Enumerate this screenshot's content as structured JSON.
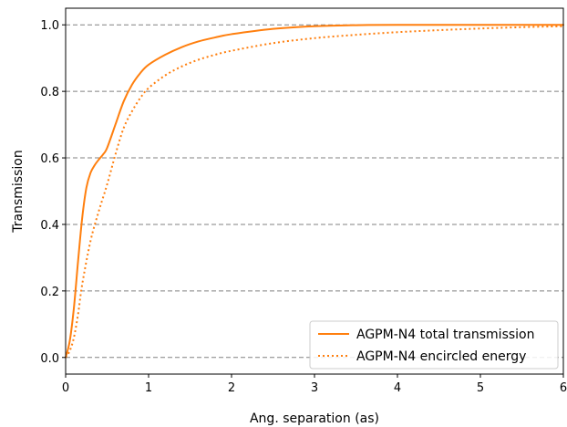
{
  "chart_data": {
    "type": "line",
    "xlabel": "Ang. separation (as)",
    "ylabel": "Transmission",
    "xlim": [
      0,
      6
    ],
    "ylim": [
      -0.05,
      1.05
    ],
    "xticks": [
      0,
      1,
      2,
      3,
      4,
      5,
      6
    ],
    "xtick_labels": [
      "0",
      "1",
      "2",
      "3",
      "4",
      "5",
      "6"
    ],
    "yticks": [
      0.0,
      0.2,
      0.4,
      0.6,
      0.8,
      1.0
    ],
    "ytick_labels": [
      "0.0",
      "0.2",
      "0.4",
      "0.6",
      "0.8",
      "1.0"
    ],
    "grid": "horizontal dashed",
    "legend_position": "lower-right",
    "series": [
      {
        "name": "AGPM-N4 total transmission",
        "color": "#ff7f0e",
        "line_style": "solid",
        "x": [
          0,
          0.05,
          0.1,
          0.15,
          0.2,
          0.25,
          0.3,
          0.35,
          0.4,
          0.45,
          0.5,
          0.6,
          0.7,
          0.8,
          0.9,
          1.0,
          1.2,
          1.4,
          1.6,
          1.8,
          2.0,
          2.5,
          3.0,
          3.5,
          4.0,
          5.0,
          6.0
        ],
        "y": [
          0.0,
          0.05,
          0.15,
          0.29,
          0.42,
          0.51,
          0.555,
          0.578,
          0.595,
          0.61,
          0.63,
          0.7,
          0.77,
          0.82,
          0.855,
          0.88,
          0.91,
          0.933,
          0.95,
          0.962,
          0.972,
          0.988,
          0.996,
          0.999,
          1.0,
          1.0,
          1.0
        ]
      },
      {
        "name": "AGPM-N4 encircled energy",
        "color": "#ff7f0e",
        "line_style": "dotted",
        "x": [
          0,
          0.05,
          0.1,
          0.15,
          0.2,
          0.3,
          0.4,
          0.5,
          0.6,
          0.7,
          0.8,
          0.9,
          1.0,
          1.2,
          1.4,
          1.6,
          1.8,
          2.0,
          2.5,
          3.0,
          3.5,
          4.0,
          4.5,
          5.0,
          5.5,
          6.0
        ],
        "y": [
          0.0,
          0.02,
          0.06,
          0.13,
          0.22,
          0.35,
          0.44,
          0.52,
          0.61,
          0.69,
          0.74,
          0.78,
          0.81,
          0.848,
          0.875,
          0.895,
          0.91,
          0.922,
          0.945,
          0.96,
          0.97,
          0.978,
          0.984,
          0.989,
          0.993,
          0.996
        ]
      }
    ]
  }
}
